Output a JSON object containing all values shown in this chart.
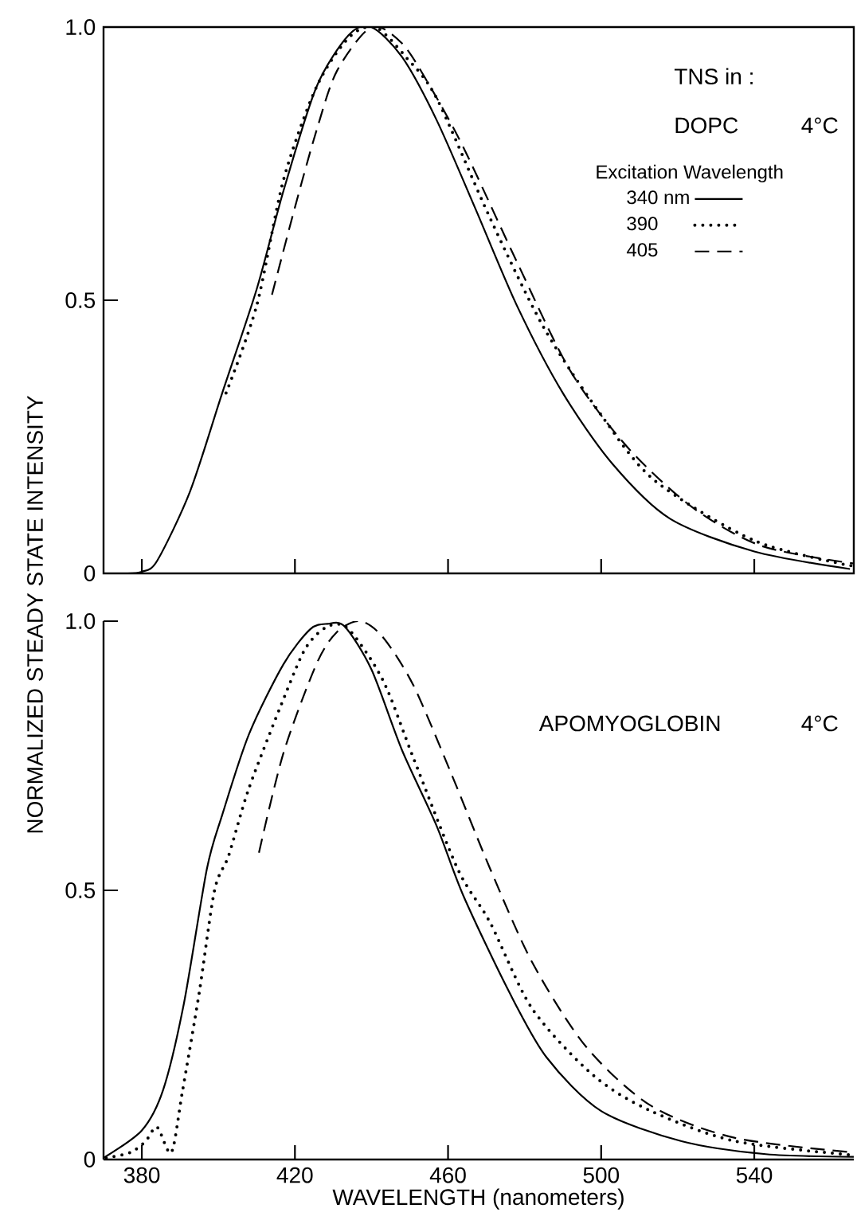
{
  "chart_data": [
    {
      "type": "line",
      "ylabel": "NORMALIZED STEADY STATE INTENSITY",
      "legend_title": "Excitation Wavelength",
      "legend": "top right",
      "marker": "none",
      "tick_labels": "y",
      "annotations": [
        "TNS in :",
        "DOPC",
        "4°C"
      ],
      "xlim": [
        370,
        566
      ],
      "ylim": [
        0,
        1
      ],
      "xticks": [
        380,
        420,
        460,
        500,
        540
      ],
      "yticks": [
        0,
        0.5,
        {
          "value": 1,
          "label": "1.0"
        }
      ],
      "series": [
        {
          "name": "340 nm",
          "color": "#000000",
          "line_style": "solid",
          "x": [
            376,
            380,
            384,
            392.6,
            401,
            410,
            417,
            425.6,
            434,
            440,
            448,
            457,
            467,
            478,
            490,
            503,
            518,
            540,
            565
          ],
          "values": [
            0,
            0.003,
            0.023,
            0.15,
            0.33,
            0.52,
            0.7,
            0.89,
            0.985,
            1.0,
            0.945,
            0.83,
            0.67,
            0.49,
            0.33,
            0.2,
            0.1,
            0.04,
            0.008
          ]
        },
        {
          "name": "390",
          "color": "#000000",
          "line_style": "dotted",
          "x": [
            402,
            410,
            417,
            425.6,
            434,
            441,
            449,
            457,
            471,
            485,
            500,
            514,
            540,
            566
          ],
          "values": [
            0.33,
            0.49,
            0.72,
            0.89,
            0.98,
            1.0,
            0.945,
            0.87,
            0.65,
            0.45,
            0.29,
            0.17,
            0.06,
            0.013
          ]
        },
        {
          "name": "405",
          "color": "#000000",
          "line_style": "dashed",
          "x": [
            414,
            420,
            425.6,
            431,
            440,
            448,
            455,
            464,
            478,
            492,
            507,
            524,
            542,
            566
          ],
          "values": [
            0.51,
            0.67,
            0.81,
            0.92,
            1.0,
            0.97,
            0.895,
            0.78,
            0.57,
            0.37,
            0.23,
            0.12,
            0.05,
            0.018
          ]
        }
      ]
    },
    {
      "type": "line",
      "xlabel": "WAVELENGTH (nanometers)",
      "marker": "none",
      "annotations": [
        "APOMYOGLOBIN",
        "4°C"
      ],
      "xlim": [
        370,
        566
      ],
      "ylim": [
        0,
        1
      ],
      "xticks": [
        380,
        420,
        460,
        500,
        540
      ],
      "yticks": [
        0,
        0.5,
        {
          "value": 1,
          "label": "1.0"
        }
      ],
      "series": [
        {
          "color": "#000000",
          "line_style": "solid",
          "x": [
            370,
            380,
            385.6,
            391,
            397,
            401,
            408,
            417,
            424,
            428.5,
            433,
            440,
            448,
            457,
            464,
            475.7,
            485.7,
            500,
            521,
            543,
            566
          ],
          "values": [
            0.003,
            0.054,
            0.13,
            0.29,
            0.54,
            0.64,
            0.79,
            0.92,
            0.985,
            0.995,
            0.99,
            0.91,
            0.76,
            0.62,
            0.49,
            0.315,
            0.19,
            0.09,
            0.034,
            0.01,
            0.005
          ]
        },
        {
          "color": "#000000",
          "line_style": "dotted",
          "x": [
            370.7,
            377,
            381,
            384,
            387.7,
            390.6,
            395,
            399,
            402.7,
            408,
            417,
            422.8,
            428.5,
            434,
            443,
            451,
            462.5,
            471,
            482,
            498,
            513,
            535,
            566
          ],
          "values": [
            0.003,
            0.013,
            0.034,
            0.06,
            0.013,
            0.126,
            0.31,
            0.5,
            0.565,
            0.69,
            0.855,
            0.95,
            0.99,
            0.985,
            0.89,
            0.745,
            0.54,
            0.44,
            0.28,
            0.156,
            0.09,
            0.034,
            0.008
          ]
        },
        {
          "color": "#000000",
          "line_style": "dashed",
          "x": [
            410.6,
            417,
            425.6,
            431,
            437,
            443,
            451,
            461,
            471,
            482,
            496,
            513,
            535,
            566
          ],
          "values": [
            0.57,
            0.755,
            0.92,
            0.98,
            1.0,
            0.97,
            0.88,
            0.714,
            0.54,
            0.366,
            0.21,
            0.1,
            0.04,
            0.013
          ]
        }
      ]
    }
  ]
}
